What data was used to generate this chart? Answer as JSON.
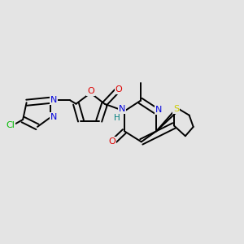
{
  "background_color": "#e4e4e4",
  "bond_color": "#000000",
  "figsize": [
    3.0,
    3.0
  ],
  "dpi": 100,
  "xlim": [
    0,
    10
  ],
  "ylim": [
    0,
    10
  ],
  "lw": 1.4,
  "cl_color": "#00bb00",
  "n_color": "#0000dd",
  "o_color": "#dd0000",
  "s_color": "#cccc00",
  "h_color": "#008080"
}
